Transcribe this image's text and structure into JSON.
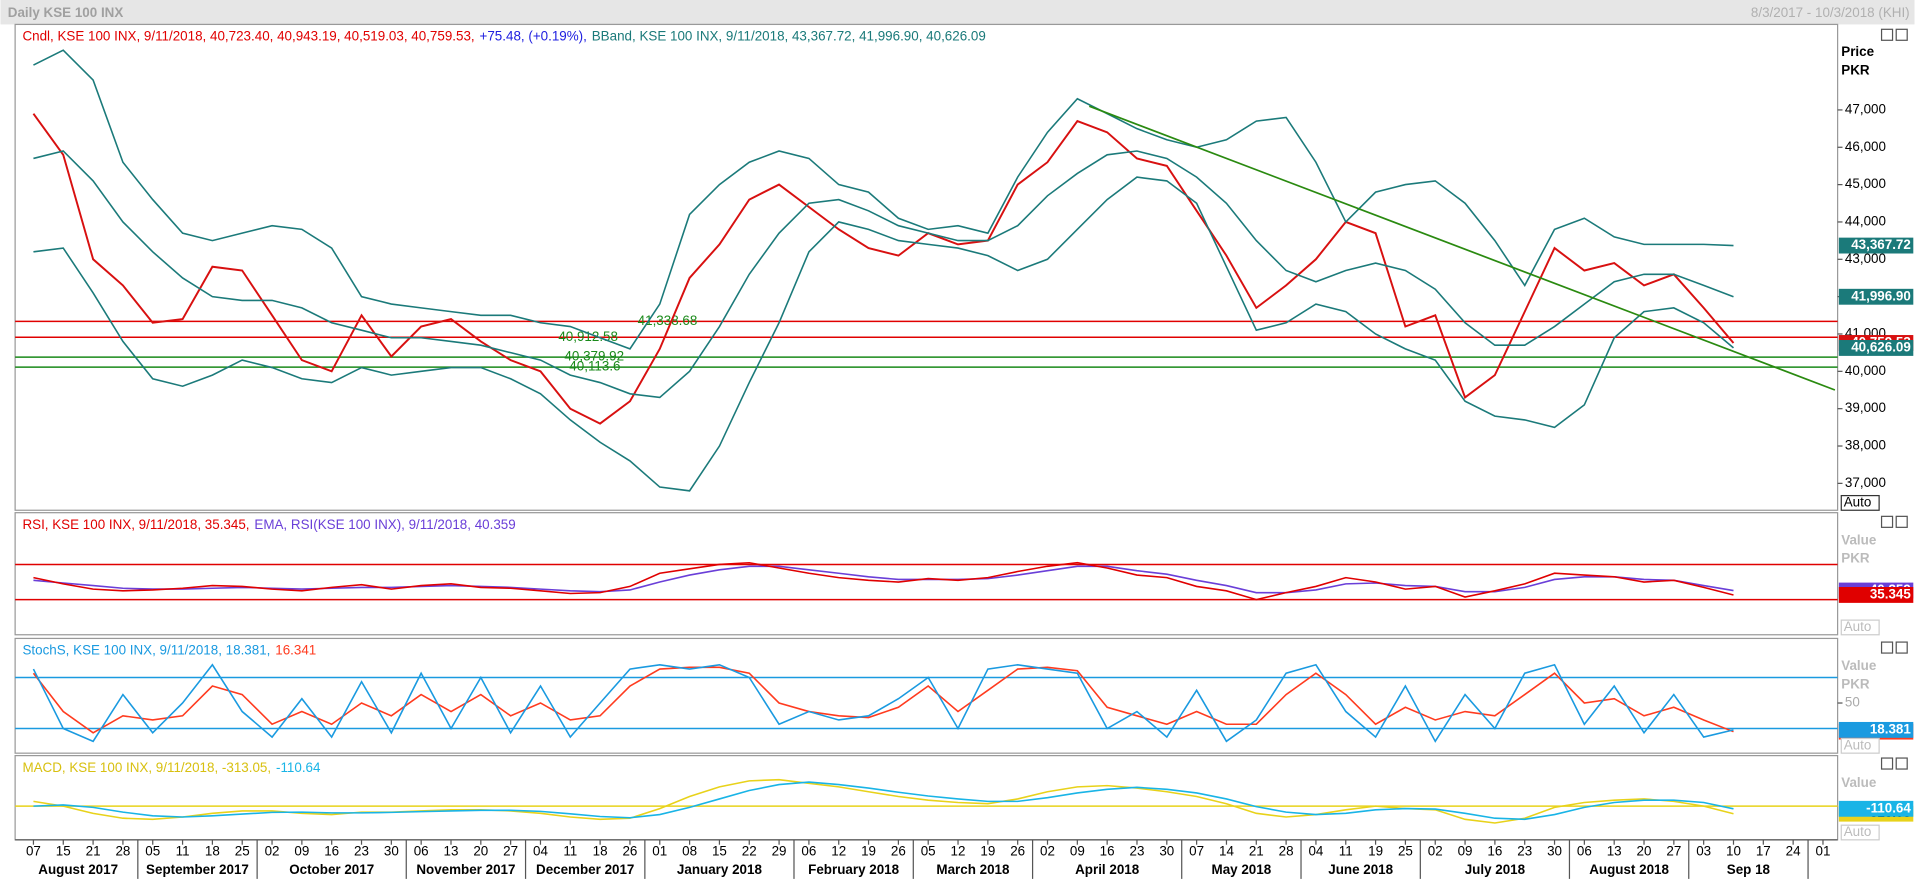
{
  "header": {
    "title": "Daily KSE 100 INX",
    "range": "8/3/2017 - 10/3/2018 (KHI)"
  },
  "chart_data": [
    {
      "type": "line",
      "legend": [
        {
          "text": "Cndl, KSE 100 INX, 9/11/2018, 40,723.40, 40,943.19, 40,519.03, 40,759.53,",
          "color": "#e00000"
        },
        {
          "text": "+75.48, (+0.19%),",
          "color": "#2020e0"
        },
        {
          "text": "BBand, KSE 100 INX, 9/11/2018, 43,367.72, 41,996.90, 40,626.09",
          "color": "#1b7a7a"
        }
      ],
      "axis_label": [
        "Price",
        "PKR"
      ],
      "auto_button": "Auto",
      "categories": [
        "07",
        "15",
        "21",
        "28",
        "05",
        "11",
        "18",
        "25",
        "02",
        "09",
        "16",
        "23",
        "30",
        "06",
        "13",
        "20",
        "27",
        "04",
        "11",
        "18",
        "26",
        "01",
        "08",
        "15",
        "22",
        "29",
        "06",
        "12",
        "19",
        "26",
        "05",
        "12",
        "19",
        "26",
        "02",
        "09",
        "16",
        "23",
        "30",
        "07",
        "14",
        "21",
        "28",
        "04",
        "11",
        "19",
        "25",
        "02",
        "09",
        "16",
        "23",
        "30",
        "06",
        "13",
        "20",
        "27",
        "03",
        "10",
        "17",
        "24",
        "01"
      ],
      "month_labels": [
        "August 2017",
        "September 2017",
        "October 2017",
        "November 2017",
        "December 2017",
        "January 2018",
        "February 2018",
        "March 2018",
        "April 2018",
        "May 2018",
        "June 2018",
        "July 2018",
        "August 2018",
        "Sep 18"
      ],
      "ylim": [
        36280,
        49290
      ],
      "yticks": [
        {
          "value": 37000,
          "label": "37,000"
        },
        {
          "value": 38000,
          "label": "38,000"
        },
        {
          "value": 39000,
          "label": "39,000"
        },
        {
          "value": 40000,
          "label": "40,000"
        },
        {
          "value": 41000,
          "label": "41,000"
        },
        {
          "value": 42000,
          "label": "42,000"
        },
        {
          "value": 43000,
          "label": "43,000"
        },
        {
          "value": 44000,
          "label": "44,000"
        },
        {
          "value": 45000,
          "label": "45,000"
        },
        {
          "value": 46000,
          "label": "46,000"
        },
        {
          "value": 47000,
          "label": "47,000"
        }
      ],
      "hlines": [
        {
          "value": 41338.68,
          "label": "41,338.68",
          "color": "#e00000"
        },
        {
          "value": 40912.58,
          "label": "40,912.58",
          "color": "#e00000"
        },
        {
          "value": 40379.92,
          "label": "40,379.92",
          "color": "#1a8a1a"
        },
        {
          "value": 40113.6,
          "label": "40,113.6",
          "color": "#1a8a1a"
        }
      ],
      "trendline": {
        "color": "#2a8a10",
        "values": [
          47100,
          39500
        ],
        "x": [
          35.4,
          60.4
        ]
      },
      "series": [
        {
          "color": "#d81010",
          "last_label": "40,759.53",
          "values": [
            46900,
            45800,
            43000,
            42300,
            41300,
            41400,
            42800,
            42700,
            41500,
            40300,
            40000,
            41500,
            40400,
            41200,
            41400,
            40800,
            40300,
            40000,
            39000,
            38600,
            39200,
            40600,
            42500,
            43400,
            44600,
            45000,
            44400,
            43800,
            43300,
            43100,
            43700,
            43400,
            43500,
            45000,
            45600,
            46700,
            46400,
            45700,
            45500,
            44300,
            43100,
            41700,
            42300,
            43000,
            44000,
            43700,
            41200,
            41500,
            39300,
            39900,
            41600,
            43300,
            42700,
            42900,
            42300,
            42600,
            41700,
            40759.53,
            null,
            null,
            null
          ]
        },
        {
          "color": "#1b7a7a",
          "last_label": "43,367.72",
          "values": [
            48200,
            48600,
            47800,
            45600,
            44600,
            43700,
            43500,
            43700,
            43900,
            43800,
            43300,
            42000,
            41800,
            41700,
            41600,
            41500,
            41500,
            41300,
            41200,
            40900,
            40600,
            41800,
            44200,
            45000,
            45600,
            45900,
            45700,
            45000,
            44800,
            44100,
            43800,
            43900,
            43700,
            45200,
            46400,
            47300,
            46900,
            46500,
            46200,
            46000,
            46200,
            46700,
            46800,
            45600,
            44000,
            44800,
            45000,
            45100,
            44500,
            43500,
            42300,
            43800,
            44100,
            43600,
            43400,
            43400,
            43400,
            43367.72,
            null,
            null,
            null
          ]
        },
        {
          "color": "#1b7a7a",
          "last_label": "41,996.90",
          "values": [
            45700,
            45900,
            45100,
            44000,
            43200,
            42500,
            42000,
            41900,
            41900,
            41700,
            41300,
            41100,
            40900,
            40900,
            40800,
            40700,
            40500,
            40300,
            39900,
            39700,
            39400,
            39300,
            40000,
            41200,
            42600,
            43700,
            44500,
            44600,
            44300,
            43900,
            43700,
            43500,
            43500,
            43900,
            44700,
            45300,
            45800,
            45900,
            45700,
            45200,
            44500,
            43500,
            42700,
            42400,
            42700,
            42900,
            42700,
            42200,
            41300,
            40700,
            40700,
            41200,
            41800,
            42400,
            42600,
            42600,
            42300,
            41996.9,
            null,
            null,
            null
          ]
        },
        {
          "color": "#1b7a7a",
          "last_label": "40,626.09",
          "values": [
            43200,
            43300,
            42100,
            40800,
            39800,
            39600,
            39900,
            40300,
            40100,
            39800,
            39700,
            40100,
            39900,
            40000,
            40100,
            40100,
            39800,
            39400,
            38700,
            38100,
            37600,
            36900,
            36800,
            38000,
            39700,
            41300,
            43200,
            44000,
            43800,
            43500,
            43400,
            43300,
            43100,
            42700,
            43000,
            43800,
            44600,
            45200,
            45100,
            44500,
            42800,
            41100,
            41300,
            41800,
            41600,
            41000,
            40600,
            40300,
            39200,
            38800,
            38700,
            38500,
            39100,
            40900,
            41600,
            41700,
            41300,
            40626.09,
            null,
            null,
            null
          ]
        }
      ]
    },
    {
      "type": "line",
      "legend": [
        {
          "text": "RSI, KSE 100 INX, 9/11/2018, 35.345,",
          "color": "#e00000"
        },
        {
          "text": "EMA, RSI(KSE 100 INX), 9/11/2018, 40.359",
          "color": "#6a3fd8"
        }
      ],
      "axis_label": [
        "Value",
        "PKR"
      ],
      "auto_button": "Auto",
      "ylim": [
        -10,
        129
      ],
      "yticks": [],
      "hlines": [
        {
          "value": 70,
          "color": "#e00000"
        },
        {
          "value": 30,
          "color": "#e00000"
        }
      ],
      "series": [
        {
          "color": "#6a3fd8",
          "last_label": "40.359",
          "values": [
            52,
            49,
            46,
            43,
            42,
            42,
            43,
            44,
            43,
            42,
            43,
            44,
            44,
            45,
            46,
            45,
            44,
            42,
            40,
            39,
            41,
            50,
            58,
            64,
            68,
            68,
            64,
            60,
            56,
            53,
            53,
            53,
            54,
            58,
            63,
            68,
            68,
            63,
            59,
            52,
            46,
            38,
            38,
            41,
            48,
            49,
            46,
            45,
            39,
            39,
            44,
            53,
            56,
            56,
            53,
            52,
            46,
            40.359,
            null,
            null,
            null
          ]
        },
        {
          "color": "#e00000",
          "last_label": "35.345",
          "values": [
            55,
            48,
            42,
            40,
            41,
            43,
            46,
            45,
            42,
            40,
            44,
            47,
            42,
            46,
            48,
            44,
            43,
            40,
            37,
            38,
            45,
            60,
            65,
            70,
            72,
            66,
            60,
            55,
            52,
            50,
            54,
            52,
            55,
            62,
            68,
            72,
            66,
            58,
            55,
            45,
            40,
            30,
            38,
            45,
            55,
            50,
            42,
            45,
            33,
            40,
            48,
            60,
            58,
            56,
            50,
            52,
            44,
            35.345,
            null,
            null,
            null
          ]
        }
      ]
    },
    {
      "type": "line",
      "legend": [
        {
          "text": "StochS, KSE 100 INX, 9/11/2018, 18.381,",
          "color": "#1a9ae0"
        },
        {
          "text": "16.341",
          "color": "#ff3b1f"
        }
      ],
      "axis_label": [
        "Value",
        "PKR"
      ],
      "auto_button": "Auto",
      "ylim": [
        -9,
        126
      ],
      "yticks": [
        50
      ],
      "hlines": [
        {
          "value": 80,
          "color": "#1a9ae0"
        },
        {
          "value": 20,
          "color": "#1a9ae0"
        }
      ],
      "series": [
        {
          "color": "#ff3b1f",
          "last_label": "16.341",
          "values": [
            85,
            40,
            15,
            35,
            30,
            35,
            70,
            60,
            25,
            40,
            25,
            50,
            35,
            60,
            40,
            60,
            35,
            50,
            30,
            35,
            70,
            90,
            92,
            92,
            85,
            50,
            40,
            35,
            33,
            45,
            70,
            40,
            65,
            90,
            92,
            88,
            45,
            35,
            25,
            40,
            25,
            25,
            60,
            85,
            60,
            25,
            45,
            30,
            40,
            35,
            60,
            85,
            50,
            55,
            35,
            45,
            30,
            16.341,
            null,
            null,
            null
          ]
        },
        {
          "color": "#1a9ae0",
          "last_label": "18.381",
          "values": [
            90,
            20,
            5,
            60,
            15,
            50,
            95,
            40,
            10,
            55,
            10,
            75,
            15,
            85,
            20,
            80,
            15,
            70,
            10,
            50,
            90,
            95,
            90,
            95,
            80,
            25,
            40,
            30,
            35,
            55,
            80,
            20,
            90,
            95,
            90,
            85,
            20,
            40,
            10,
            65,
            5,
            30,
            85,
            95,
            40,
            10,
            70,
            5,
            60,
            20,
            85,
            95,
            25,
            70,
            15,
            60,
            10,
            18.381,
            null,
            null,
            null
          ]
        }
      ]
    },
    {
      "type": "line",
      "legend": [
        {
          "text": "MACD, KSE 100 INX, 9/11/2018, -313.05,",
          "color": "#d8c010"
        },
        {
          "text": "-110.64",
          "color": "#19b4e6"
        }
      ],
      "axis_label": [
        "Value"
      ],
      "auto_button": "Auto",
      "ylim": [
        -1400,
        2100
      ],
      "yticks": [],
      "hlines": [
        {
          "value": 0,
          "color": "#e8d21a"
        }
      ],
      "series": [
        {
          "color": "#e8d21a",
          "last_label": "-313.05",
          "values": [
            200,
            0,
            -300,
            -500,
            -550,
            -450,
            -300,
            -200,
            -200,
            -300,
            -350,
            -250,
            -250,
            -200,
            -150,
            -150,
            -200,
            -300,
            -450,
            -550,
            -500,
            -100,
            400,
            800,
            1050,
            1100,
            950,
            800,
            600,
            400,
            250,
            150,
            100,
            300,
            600,
            800,
            850,
            750,
            600,
            400,
            100,
            -300,
            -450,
            -350,
            -150,
            0,
            -100,
            -150,
            -550,
            -700,
            -500,
            -50,
            150,
            250,
            300,
            200,
            0,
            -313.05,
            null,
            null,
            null
          ]
        },
        {
          "color": "#19b4e6",
          "last_label": "-110.64",
          "values": [
            0,
            50,
            -50,
            -250,
            -400,
            -450,
            -400,
            -330,
            -260,
            -250,
            -280,
            -280,
            -260,
            -230,
            -200,
            -170,
            -170,
            -220,
            -320,
            -430,
            -480,
            -350,
            -50,
            300,
            650,
            900,
            1000,
            900,
            750,
            580,
            420,
            300,
            200,
            200,
            350,
            550,
            700,
            780,
            700,
            550,
            300,
            -20,
            -250,
            -350,
            -300,
            -150,
            -100,
            -120,
            -300,
            -500,
            -550,
            -350,
            -50,
            150,
            250,
            250,
            150,
            -110.64,
            null,
            null,
            null
          ]
        }
      ]
    }
  ]
}
